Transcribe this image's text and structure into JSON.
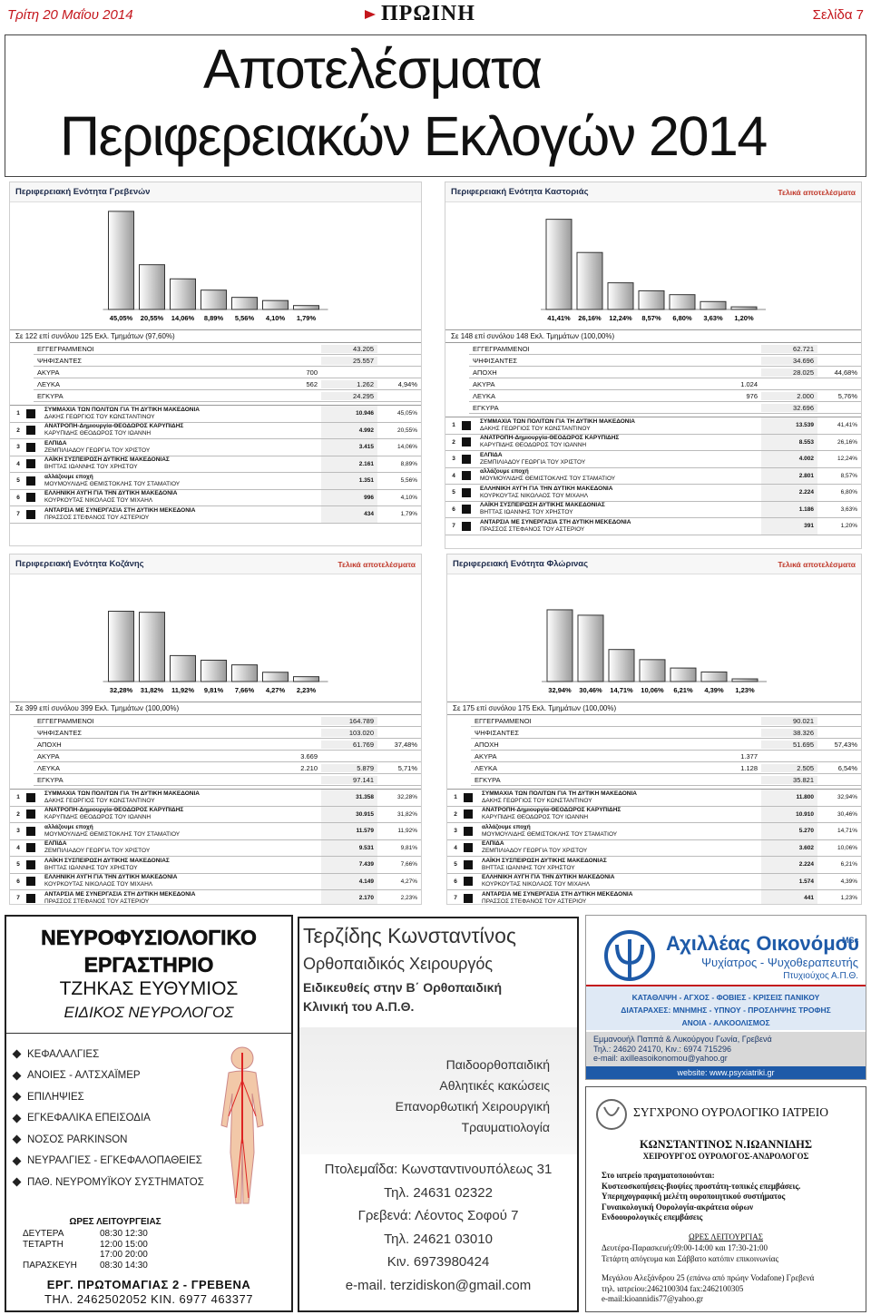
{
  "header": {
    "date": "Τρίτη 20 Μαΐου 2014",
    "logo": "ΠΡΩΙΝΗ",
    "page": "Σελίδα 7"
  },
  "title": [
    "Αποτελέσματα",
    "Περιφερειακών Εκλογών 2014"
  ],
  "panels": [
    {
      "title": "Περιφερειακή Ενότητα Γρεβενών",
      "bars": {
        "values": [
          45.05,
          20.55,
          14.06,
          8.89,
          5.56,
          4.1,
          1.79
        ],
        "value_labels": [
          "45,05%",
          "20,55%",
          "14,06%",
          "8,89%",
          "5,56%",
          "4,10%",
          "1,79%"
        ]
      },
      "summary": "Σε 122 επί συνόλου 125 Εκλ. Τμημάτων (97,60%)",
      "stats": [
        {
          "label": "ΕΓΓΕΓΡΑΜΜΕΝΟΙ",
          "value": "43.205"
        },
        {
          "label": "ΨΗΦΙΣΑΝΤΕΣ",
          "value": "25.557"
        },
        {
          "label": "ΑΚΥΡΑ",
          "sub": "700"
        },
        {
          "label": "ΛΕΥΚΑ",
          "sub": "562",
          "value": "1.262",
          "pct": "4,94%"
        },
        {
          "label": "ΕΓΚΥΡΑ",
          "value": "24.295"
        }
      ],
      "candidates": [
        {
          "rank": 1,
          "party": "ΣΥΜΜΑΧΙΑ ΤΩΝ ΠΟΛΙΤΩΝ ΓΙΑ ΤΗ ΔΥΤΙΚΗ ΜΑΚΕΔΟΝΙΑ",
          "leader": "ΔΑΚΗΣ ΓΕΩΡΓΙΟΣ ΤΟΥ ΚΩΝΣΤΑΝΤΙΝΟΥ",
          "votes": "10.946",
          "pct": "45,05%"
        },
        {
          "rank": 2,
          "party": "ΑΝΑΤΡΟΠΗ-Δημιουργία-ΘΕΟΔΩΡΟΣ ΚΑΡΥΠΙΔΗΣ",
          "leader": "ΚΑΡΥΠΙΔΗΣ ΘΕΟΔΩΡΟΣ ΤΟΥ ΙΩΑΝΝΗ",
          "votes": "4.992",
          "pct": "20,55%"
        },
        {
          "rank": 3,
          "party": "ΕΛΠΙΔΑ",
          "leader": "ΖΕΜΠΙΛΙΑΔΟΥ ΓΕΩΡΓΙΑ ΤΟΥ ΧΡΙΣΤΟΥ",
          "votes": "3.415",
          "pct": "14,06%"
        },
        {
          "rank": 4,
          "party": "ΛΑΪΚΗ ΣΥΣΠΕΙΡΩΣΗ ΔΥΤΙΚΗΣ ΜΑΚΕΔΟΝΙΑΣ",
          "leader": "ΒΗΤΤΑΣ ΙΩΑΝΝΗΣ ΤΟΥ ΧΡΗΣΤΟΥ",
          "votes": "2.161",
          "pct": "8,89%"
        },
        {
          "rank": 5,
          "party": "αλλάζουμε εποχή",
          "leader": "ΜΟΥΜΟΥΛΙΔΗΣ ΘΕΜΙΣΤΟΚΛΗΣ ΤΟΥ ΣΤΑΜΑΤΙΟΥ",
          "votes": "1.351",
          "pct": "5,56%"
        },
        {
          "rank": 6,
          "party": "ΕΛΛΗΝΙΚΗ ΑΥΓΗ ΓΙΑ ΤΗΝ ΔΥΤΙΚΗ ΜΑΚΕΔΟΝΙΑ",
          "leader": "ΚΟΥΡΚΟΥΤΑΣ ΝΙΚΟΛΑΟΣ ΤΟΥ ΜΙΧΑΗΛ",
          "votes": "996",
          "pct": "4,10%"
        },
        {
          "rank": 7,
          "party": "ΑΝΤΑΡΣΙΑ ΜΕ ΣΥΝΕΡΓΑΣΙΑ ΣΤΗ ΔΥΤΙΚΗ ΜΕΚΕΔΟΝΙΑ",
          "leader": "ΠΡΑΣΣΟΣ ΣΤΕΦΑΝΟΣ ΤΟΥ ΑΣΤΕΡΙΟΥ",
          "votes": "434",
          "pct": "1,79%"
        }
      ]
    },
    {
      "title": "Περιφερειακή Ενότητα Καστοριάς",
      "note": "Τελικά αποτελέσματα",
      "bars": {
        "values": [
          41.41,
          26.16,
          12.24,
          8.57,
          6.8,
          3.63,
          1.2
        ],
        "value_labels": [
          "41,41%",
          "26,16%",
          "12,24%",
          "8,57%",
          "6,80%",
          "3,63%",
          "1,20%"
        ]
      },
      "summary": "Σε 148 επί συνόλου 148 Εκλ. Τμημάτων (100,00%)",
      "stats": [
        {
          "label": "ΕΓΓΕΓΡΑΜΜΕΝΟΙ",
          "value": "62.721"
        },
        {
          "label": "ΨΗΦΙΣΑΝΤΕΣ",
          "value": "34.696"
        },
        {
          "label": "ΑΠΟΧΗ",
          "value": "28.025",
          "pct": "44,68%"
        },
        {
          "label": "ΑΚΥΡΑ",
          "sub": "1.024"
        },
        {
          "label": "ΛΕΥΚΑ",
          "sub": "976",
          "value": "2.000",
          "pct": "5,76%"
        },
        {
          "label": "ΕΓΚΥΡΑ",
          "value": "32.696"
        }
      ],
      "candidates": [
        {
          "rank": 1,
          "party": "ΣΥΜΜΑΧΙΑ ΤΩΝ ΠΟΛΙΤΩΝ ΓΙΑ ΤΗ ΔΥΤΙΚΗ ΜΑΚΕΔΟΝΙΑ",
          "leader": "ΔΑΚΗΣ ΓΕΩΡΓΙΟΣ ΤΟΥ ΚΩΝΣΤΑΝΤΙΝΟΥ",
          "votes": "13.539",
          "pct": "41,41%"
        },
        {
          "rank": 2,
          "party": "ΑΝΑΤΡΟΠΗ-Δημιουργία-ΘΕΟΔΩΡΟΣ ΚΑΡΥΠΙΔΗΣ",
          "leader": "ΚΑΡΥΠΙΔΗΣ ΘΕΟΔΩΡΟΣ ΤΟΥ ΙΩΑΝΝΗ",
          "votes": "8.553",
          "pct": "26,16%"
        },
        {
          "rank": 3,
          "party": "ΕΛΠΙΔΑ",
          "leader": "ΖΕΜΠΙΛΙΑΔΟΥ ΓΕΩΡΓΙΑ ΤΟΥ ΧΡΙΣΤΟΥ",
          "votes": "4.002",
          "pct": "12,24%"
        },
        {
          "rank": 4,
          "party": "αλλάζουμε εποχή",
          "leader": "ΜΟΥΜΟΥΛΙΔΗΣ ΘΕΜΙΣΤΟΚΛΗΣ ΤΟΥ ΣΤΑΜΑΤΙΟΥ",
          "votes": "2.801",
          "pct": "8,57%"
        },
        {
          "rank": 5,
          "party": "ΕΛΛΗΝΙΚΗ ΑΥΓΗ ΓΙΑ ΤΗΝ ΔΥΤΙΚΗ ΜΑΚΕΔΟΝΙΑ",
          "leader": "ΚΟΥΡΚΟΥΤΑΣ ΝΙΚΟΛΑΟΣ ΤΟΥ ΜΙΧΑΗΛ",
          "votes": "2.224",
          "pct": "6,80%"
        },
        {
          "rank": 6,
          "party": "ΛΑΪΚΗ ΣΥΣΠΕΙΡΩΣΗ ΔΥΤΙΚΗΣ ΜΑΚΕΔΟΝΙΑΣ",
          "leader": "ΒΗΤΤΑΣ ΙΩΑΝΝΗΣ ΤΟΥ ΧΡΗΣΤΟΥ",
          "votes": "1.186",
          "pct": "3,63%"
        },
        {
          "rank": 7,
          "party": "ΑΝΤΑΡΣΙΑ ΜΕ ΣΥΝΕΡΓΑΣΙΑ ΣΤΗ ΔΥΤΙΚΗ ΜΕΚΕΔΟΝΙΑ",
          "leader": "ΠΡΑΣΣΟΣ ΣΤΕΦΑΝΟΣ ΤΟΥ ΑΣΤΕΡΙΟΥ",
          "votes": "391",
          "pct": "1,20%"
        }
      ]
    },
    {
      "title": "Περιφερειακή Ενότητα Κοζάνης",
      "note": "Τελικά αποτελέσματα",
      "bars": {
        "values": [
          32.28,
          31.82,
          11.92,
          9.81,
          7.66,
          4.27,
          2.23
        ],
        "value_labels": [
          "32,28%",
          "31,82%",
          "11,92%",
          "9,81%",
          "7,66%",
          "4,27%",
          "2,23%"
        ]
      },
      "summary": "Σε 399 επί συνόλου 399 Εκλ. Τμημάτων (100,00%)",
      "stats": [
        {
          "label": "ΕΓΓΕΓΡΑΜΜΕΝΟΙ",
          "value": "164.789"
        },
        {
          "label": "ΨΗΦΙΣΑΝΤΕΣ",
          "value": "103.020"
        },
        {
          "label": "ΑΠΟΧΗ",
          "value": "61.769",
          "pct": "37,48%"
        },
        {
          "label": "ΑΚΥΡΑ",
          "sub": "3.669"
        },
        {
          "label": "ΛΕΥΚΑ",
          "sub": "2.210",
          "value": "5.879",
          "pct": "5,71%"
        },
        {
          "label": "ΕΓΚΥΡΑ",
          "value": "97.141"
        }
      ],
      "candidates": [
        {
          "rank": 1,
          "party": "ΣΥΜΜΑΧΙΑ ΤΩΝ ΠΟΛΙΤΩΝ ΓΙΑ ΤΗ ΔΥΤΙΚΗ ΜΑΚΕΔΟΝΙΑ",
          "leader": "ΔΑΚΗΣ ΓΕΩΡΓΙΟΣ ΤΟΥ ΚΩΝΣΤΑΝΤΙΝΟΥ",
          "votes": "31.358",
          "pct": "32,28%"
        },
        {
          "rank": 2,
          "party": "ΑΝΑΤΡΟΠΗ-Δημιουργία-ΘΕΟΔΩΡΟΣ ΚΑΡΥΠΙΔΗΣ",
          "leader": "ΚΑΡΥΠΙΔΗΣ ΘΕΟΔΩΡΟΣ ΤΟΥ ΙΩΑΝΝΗ",
          "votes": "30.915",
          "pct": "31,82%"
        },
        {
          "rank": 3,
          "party": "αλλάζουμε εποχή",
          "leader": "ΜΟΥΜΟΥΛΙΔΗΣ ΘΕΜΙΣΤΟΚΛΗΣ ΤΟΥ ΣΤΑΜΑΤΙΟΥ",
          "votes": "11.579",
          "pct": "11,92%"
        },
        {
          "rank": 4,
          "party": "ΕΛΠΙΔΑ",
          "leader": "ΖΕΜΠΙΛΙΑΔΟΥ ΓΕΩΡΓΙΑ ΤΟΥ ΧΡΙΣΤΟΥ",
          "votes": "9.531",
          "pct": "9,81%"
        },
        {
          "rank": 5,
          "party": "ΛΑΪΚΗ ΣΥΣΠΕΙΡΩΣΗ ΔΥΤΙΚΗΣ ΜΑΚΕΔΟΝΙΑΣ",
          "leader": "ΒΗΤΤΑΣ ΙΩΑΝΝΗΣ ΤΟΥ ΧΡΗΣΤΟΥ",
          "votes": "7.439",
          "pct": "7,66%"
        },
        {
          "rank": 6,
          "party": "ΕΛΛΗΝΙΚΗ ΑΥΓΗ ΓΙΑ ΤΗΝ ΔΥΤΙΚΗ ΜΑΚΕΔΟΝΙΑ",
          "leader": "ΚΟΥΡΚΟΥΤΑΣ ΝΙΚΟΛΑΟΣ ΤΟΥ ΜΙΧΑΗΛ",
          "votes": "4.149",
          "pct": "4,27%"
        },
        {
          "rank": 7,
          "party": "ΑΝΤΑΡΣΙΑ ΜΕ ΣΥΝΕΡΓΑΣΙΑ ΣΤΗ ΔΥΤΙΚΗ ΜΕΚΕΔΟΝΙΑ",
          "leader": "ΠΡΑΣΣΟΣ ΣΤΕΦΑΝΟΣ ΤΟΥ ΑΣΤΕΡΙΟΥ",
          "votes": "2.170",
          "pct": "2,23%"
        }
      ]
    },
    {
      "title": "Περιφερειακή Ενότητα Φλώρινας",
      "note": "Τελικά αποτελέσματα",
      "bars": {
        "values": [
          32.94,
          30.46,
          14.71,
          10.06,
          6.21,
          4.39,
          1.23
        ],
        "value_labels": [
          "32,94%",
          "30,46%",
          "14,71%",
          "10,06%",
          "6,21%",
          "4,39%",
          "1,23%"
        ]
      },
      "summary": "Σε 175 επί συνόλου 175 Εκλ. Τμημάτων (100,00%)",
      "stats": [
        {
          "label": "ΕΓΓΕΓΡΑΜΜΕΝΟΙ",
          "value": "90.021"
        },
        {
          "label": "ΨΗΦΙΣΑΝΤΕΣ",
          "value": "38.326"
        },
        {
          "label": "ΑΠΟΧΗ",
          "value": "51.695",
          "pct": "57,43%"
        },
        {
          "label": "ΑΚΥΡΑ",
          "sub": "1.377"
        },
        {
          "label": "ΛΕΥΚΑ",
          "sub": "1.128",
          "value": "2.505",
          "pct": "6,54%"
        },
        {
          "label": "ΕΓΚΥΡΑ",
          "value": "35.821"
        }
      ],
      "candidates": [
        {
          "rank": 1,
          "party": "ΣΥΜΜΑΧΙΑ ΤΩΝ ΠΟΛΙΤΩΝ ΓΙΑ ΤΗ ΔΥΤΙΚΗ ΜΑΚΕΔΟΝΙΑ",
          "leader": "ΔΑΚΗΣ ΓΕΩΡΓΙΟΣ ΤΟΥ ΚΩΝΣΤΑΝΤΙΝΟΥ",
          "votes": "11.800",
          "pct": "32,94%"
        },
        {
          "rank": 2,
          "party": "ΑΝΑΤΡΟΠΗ-Δημιουργία-ΘΕΟΔΩΡΟΣ ΚΑΡΥΠΙΔΗΣ",
          "leader": "ΚΑΡΥΠΙΔΗΣ ΘΕΟΔΩΡΟΣ ΤΟΥ ΙΩΑΝΝΗ",
          "votes": "10.910",
          "pct": "30,46%"
        },
        {
          "rank": 3,
          "party": "αλλάζουμε εποχή",
          "leader": "ΜΟΥΜΟΥΛΙΔΗΣ ΘΕΜΙΣΤΟΚΛΗΣ ΤΟΥ ΣΤΑΜΑΤΙΟΥ",
          "votes": "5.270",
          "pct": "14,71%"
        },
        {
          "rank": 4,
          "party": "ΕΛΠΙΔΑ",
          "leader": "ΖΕΜΠΙΛΙΑΔΟΥ ΓΕΩΡΓΙΑ ΤΟΥ ΧΡΙΣΤΟΥ",
          "votes": "3.602",
          "pct": "10,06%"
        },
        {
          "rank": 5,
          "party": "ΛΑΪΚΗ ΣΥΣΠΕΙΡΩΣΗ ΔΥΤΙΚΗΣ ΜΑΚΕΔΟΝΙΑΣ",
          "leader": "ΒΗΤΤΑΣ ΙΩΑΝΝΗΣ ΤΟΥ ΧΡΗΣΤΟΥ",
          "votes": "2.224",
          "pct": "6,21%"
        },
        {
          "rank": 6,
          "party": "ΕΛΛΗΝΙΚΗ ΑΥΓΗ ΓΙΑ ΤΗΝ ΔΥΤΙΚΗ ΜΑΚΕΔΟΝΙΑ",
          "leader": "ΚΟΥΡΚΟΥΤΑΣ ΝΙΚΟΛΑΟΣ ΤΟΥ ΜΙΧΑΗΛ",
          "votes": "1.574",
          "pct": "4,39%"
        },
        {
          "rank": 7,
          "party": "ΑΝΤΑΡΣΙΑ ΜΕ ΣΥΝΕΡΓΑΣΙΑ ΣΤΗ ΔΥΤΙΚΗ ΜΕΚΕΔΟΝΙΑ",
          "leader": "ΠΡΑΣΣΟΣ ΣΤΕΦΑΝΟΣ ΤΟΥ ΑΣΤΕΡΙΟΥ",
          "votes": "441",
          "pct": "1,23%"
        }
      ]
    }
  ],
  "ads": {
    "neuro": {
      "title": [
        "ΝΕΥΡΟΦΥΣΙΟΛΟΓΙΚΟ",
        "ΕΡΓΑΣΤΗΡΙΟ"
      ],
      "name": "ΤΖΗΚΑΣ ΕΥΘΥΜΙΟΣ",
      "specialty": "ΕΙΔΙΚΟΣ ΝΕΥΡΟΛΟΓΟΣ",
      "services": [
        "ΚΕΦΑΛΑΛΓΙΕΣ",
        "ΑΝΟΙΕΣ - ΑΛΤΣΧΑΪΜΕΡ",
        "ΕΠΙΛΗΨΙΕΣ",
        "ΕΓΚΕΦΑΛΙΚΑ ΕΠΕΙΣΟΔΙΑ",
        "ΝΟΣΟΣ PARKINSON",
        "ΝΕΥΡΑΛΓΙΕΣ - ΕΓΚΕΦΑΛΟΠΑΘΕΙΕΣ",
        "ΠΑΘ. ΝΕΥΡΟΜΥΪΚΟΥ ΣΥΣΤΗΜΑΤΟΣ"
      ],
      "hours_title": "ΩΡΕΣ ΛΕΙΤΟΥΡΓΕΙΑΣ",
      "hours": [
        {
          "day": "ΔΕΥΤΕΡΑ",
          "time": "08:30 12:30"
        },
        {
          "day": "ΤΕΤΑΡΤΗ",
          "time": "12:00 15:00"
        },
        {
          "time": "17:00 20:00"
        },
        {
          "day": "ΠΑΡΑΣΚΕΥΗ",
          "time": "08:30 14:30"
        }
      ],
      "address": "ΕΡΓ. ΠΡΩΤΟΜΑΓΙΑΣ 2 - ΓΡΕΒΕΝΑ",
      "phone": "ΤΗΛ. 2462502052 ΚΙΝ. 6977 463377"
    },
    "ortho": {
      "name": "Τερζίδης Κωνσταντίνος",
      "role": "Ορθοπαιδικός Χειρουργός",
      "training": [
        "Ειδικευθείς στην Β΄ Ορθοπαιδική",
        "Κλινική του Α.Π.Θ."
      ],
      "services": [
        "Παιδοορθοπαιδική",
        "Αθλητικές κακώσεις",
        "Επανορθωτική Χειρουργική",
        "Τραυματιολογία"
      ],
      "contact": [
        "Πτολεμαΐδα: Κωνσταντινουπόλεως 31",
        "Τηλ. 24631 02322",
        "Γρεβενά: Λέοντος Σοφού 7",
        "Τηλ. 24621 03010",
        "Κιν. 6973980424",
        "e-mail. terzidiskon@gmail.com"
      ]
    },
    "psych": {
      "name": "Αχιλλέας Οικονόμου",
      "degree": "MSc",
      "role": "Ψυχίατρος - Ψυχοθεραπευτής",
      "school": "Πτυχιούχος Α.Π.Θ.",
      "topics": [
        "ΚΑΤΑΘΛΙΨΗ - ΑΓΧΟΣ - ΦΟΒΙΕΣ - ΚΡΙΣΕΙΣ ΠΑΝΙΚΟΥ",
        "ΔΙΑΤΑΡΑΧΕΣ: ΜΝΗΜΗΣ - ΥΠΝΟΥ - ΠΡΟΣΛΗΨΗΣ ΤΡΟΦΗΣ",
        "ΑΝΟΙΑ - ΑΛΚΟΟΛΙΣΜΟΣ"
      ],
      "contact": [
        "Εμμανουήλ Παππά & Λυκούργου Γωνία, Γρεβενά",
        "Τηλ.: 24620 24170, Κιν.: 6974 715296",
        "e-mail: axilleasoikonomou@yahoo.gr"
      ],
      "website": "website: www.psyxiatriki.gr"
    },
    "uro": {
      "title": "ΣΥΓΧΡΟΝΟ ΟΥΡΟΛΟΓΙΚΟ ΙΑΤΡΕΙΟ",
      "name": "ΚΩΝΣΤΑΝΤΙΝΟΣ Ν.ΙΩΑΝΝΙΔΗΣ",
      "role": "ΧΕΙΡΟΥΡΓΟΣ ΟΥΡΟΛΟΓΟΣ-ΑΝΔΡΟΛΟΓΟΣ",
      "services": [
        "Στο ιατρείο πραγματοποιούνται:",
        "Κυστεοσκοπήσεις-βιοψίες προστάτη-τοπικές επεμβάσεις.",
        "Υπερηχογραφική μελέτη ουροποιητικού συστήματος",
        "Γυναικολογική Ουρολογία-ακράτεια ούρων",
        "Ενδοουρολογικές επεμβάσεις"
      ],
      "hours_title": "ΩΡΕΣ ΛΕΙΤΟΥΡΓΙΑΣ",
      "hours": [
        "Δευτέρα-Παρασκευή:09:00-14:00 και 17:30-21:00",
        "Τετάρτη απόγευμα και Σάββατο κατόπιν επικοινωνίας"
      ],
      "contact": [
        "Μεγάλου Αλεξάνδρου 25 (επάνω από πρώην Vodafone) Γρεβενά",
        "τηλ. ιατρείου:2462100304 fax:2462100305",
        "e-mail:kioannidis77@yahoo.gr"
      ]
    }
  }
}
